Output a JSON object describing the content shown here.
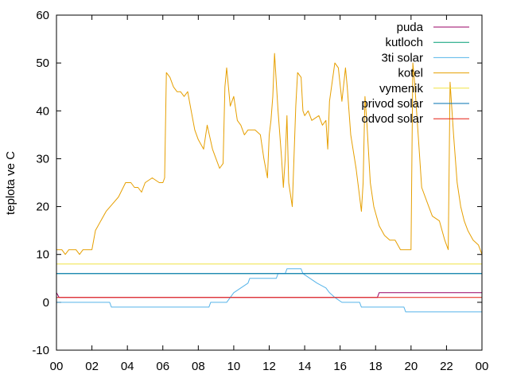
{
  "chart_data": {
    "type": "line",
    "ylabel": "teplota ve C",
    "xlabel": "",
    "ylim": [
      -10,
      60
    ],
    "xlim": [
      0,
      24
    ],
    "x_tick_labels": [
      "00",
      "02",
      "04",
      "06",
      "08",
      "10",
      "12",
      "14",
      "16",
      "18",
      "20",
      "22",
      "00"
    ],
    "y_tick_labels": [
      "-10",
      "0",
      "10",
      "20",
      "30",
      "40",
      "50",
      "60"
    ],
    "legend_position": "top-right",
    "series": [
      {
        "name": "puda",
        "color": "#990066",
        "points": [
          [
            0,
            2
          ],
          [
            0.15,
            1
          ],
          [
            18.1,
            1
          ],
          [
            18.2,
            2
          ],
          [
            24,
            2
          ]
        ]
      },
      {
        "name": "kutloch",
        "color": "#009e73",
        "points": [
          [
            0,
            6
          ],
          [
            24,
            6
          ]
        ]
      },
      {
        "name": "3ti solar",
        "color": "#56b4e9",
        "points": [
          [
            0,
            0
          ],
          [
            3.0,
            0
          ],
          [
            3.1,
            -1
          ],
          [
            8.6,
            -1
          ],
          [
            8.7,
            0
          ],
          [
            9.6,
            0
          ],
          [
            9.8,
            1
          ],
          [
            10.0,
            2
          ],
          [
            10.4,
            3
          ],
          [
            10.8,
            4
          ],
          [
            10.9,
            5
          ],
          [
            12.4,
            5
          ],
          [
            12.5,
            6
          ],
          [
            12.9,
            6
          ],
          [
            13.0,
            7
          ],
          [
            13.8,
            7
          ],
          [
            13.9,
            6
          ],
          [
            14.3,
            5
          ],
          [
            14.7,
            4
          ],
          [
            15.2,
            3
          ],
          [
            15.4,
            2
          ],
          [
            15.7,
            1
          ],
          [
            16.1,
            0
          ],
          [
            17.1,
            0
          ],
          [
            17.2,
            -1
          ],
          [
            19.6,
            -1
          ],
          [
            19.7,
            -2
          ],
          [
            24,
            -2
          ]
        ]
      },
      {
        "name": "kotel",
        "color": "#e69f00",
        "points": [
          [
            0,
            11
          ],
          [
            0.3,
            11
          ],
          [
            0.5,
            10
          ],
          [
            0.7,
            11
          ],
          [
            1.1,
            11
          ],
          [
            1.3,
            10
          ],
          [
            1.5,
            11
          ],
          [
            2.0,
            11
          ],
          [
            2.2,
            15
          ],
          [
            2.8,
            19
          ],
          [
            3.5,
            22
          ],
          [
            3.9,
            25
          ],
          [
            4.2,
            25
          ],
          [
            4.4,
            24
          ],
          [
            4.6,
            24
          ],
          [
            4.8,
            23
          ],
          [
            5.0,
            25
          ],
          [
            5.4,
            26
          ],
          [
            5.8,
            25
          ],
          [
            6.0,
            25
          ],
          [
            6.1,
            26
          ],
          [
            6.2,
            48
          ],
          [
            6.4,
            47
          ],
          [
            6.6,
            45
          ],
          [
            6.8,
            44
          ],
          [
            7.0,
            44
          ],
          [
            7.2,
            43
          ],
          [
            7.4,
            44
          ],
          [
            7.6,
            40
          ],
          [
            7.8,
            36
          ],
          [
            8.0,
            34
          ],
          [
            8.3,
            32
          ],
          [
            8.5,
            37
          ],
          [
            8.8,
            32
          ],
          [
            9.0,
            30
          ],
          [
            9.2,
            28
          ],
          [
            9.4,
            29
          ],
          [
            9.5,
            45
          ],
          [
            9.6,
            49
          ],
          [
            9.8,
            41
          ],
          [
            10.0,
            43
          ],
          [
            10.2,
            38
          ],
          [
            10.4,
            37
          ],
          [
            10.6,
            35
          ],
          [
            10.8,
            36
          ],
          [
            11.2,
            36
          ],
          [
            11.5,
            35
          ],
          [
            11.7,
            30
          ],
          [
            11.9,
            26
          ],
          [
            12.0,
            35
          ],
          [
            12.1,
            38
          ],
          [
            12.2,
            43
          ],
          [
            12.3,
            52
          ],
          [
            12.5,
            40
          ],
          [
            12.7,
            30
          ],
          [
            12.8,
            24
          ],
          [
            12.9,
            30
          ],
          [
            13.0,
            39
          ],
          [
            13.1,
            25
          ],
          [
            13.3,
            20
          ],
          [
            13.5,
            41
          ],
          [
            13.6,
            48
          ],
          [
            13.8,
            47
          ],
          [
            13.9,
            40
          ],
          [
            14.0,
            39
          ],
          [
            14.2,
            40
          ],
          [
            14.4,
            38
          ],
          [
            14.8,
            39
          ],
          [
            15.0,
            37
          ],
          [
            15.2,
            38
          ],
          [
            15.3,
            32
          ],
          [
            15.4,
            42
          ],
          [
            15.7,
            50
          ],
          [
            15.9,
            49
          ],
          [
            16.1,
            42
          ],
          [
            16.3,
            49
          ],
          [
            16.4,
            45
          ],
          [
            16.6,
            35
          ],
          [
            16.9,
            28
          ],
          [
            17.1,
            22
          ],
          [
            17.2,
            19
          ],
          [
            17.3,
            25
          ],
          [
            17.4,
            43
          ],
          [
            17.5,
            38
          ],
          [
            17.7,
            25
          ],
          [
            17.9,
            20
          ],
          [
            18.2,
            16
          ],
          [
            18.5,
            14
          ],
          [
            18.8,
            13
          ],
          [
            19.1,
            13
          ],
          [
            19.4,
            11
          ],
          [
            19.8,
            11
          ],
          [
            20.0,
            11
          ],
          [
            20.1,
            50
          ],
          [
            20.2,
            46
          ],
          [
            20.4,
            35
          ],
          [
            20.6,
            24
          ],
          [
            21.0,
            20
          ],
          [
            21.2,
            18
          ],
          [
            21.6,
            17
          ],
          [
            21.9,
            13
          ],
          [
            22.0,
            12
          ],
          [
            22.1,
            11
          ],
          [
            22.2,
            46
          ],
          [
            22.4,
            35
          ],
          [
            22.6,
            25
          ],
          [
            22.8,
            20
          ],
          [
            23.0,
            17
          ],
          [
            23.2,
            15
          ],
          [
            23.5,
            13
          ],
          [
            23.8,
            12
          ],
          [
            24.0,
            10
          ]
        ]
      },
      {
        "name": "vymenik",
        "color": "#f0e442",
        "points": [
          [
            0,
            8
          ],
          [
            24,
            8
          ]
        ]
      },
      {
        "name": "privod solar",
        "color": "#0072b2",
        "points": [
          [
            0,
            6
          ],
          [
            24,
            6
          ]
        ]
      },
      {
        "name": "odvod solar",
        "color": "#e51e10",
        "points": [
          [
            0,
            1
          ],
          [
            24,
            1
          ]
        ]
      }
    ]
  }
}
